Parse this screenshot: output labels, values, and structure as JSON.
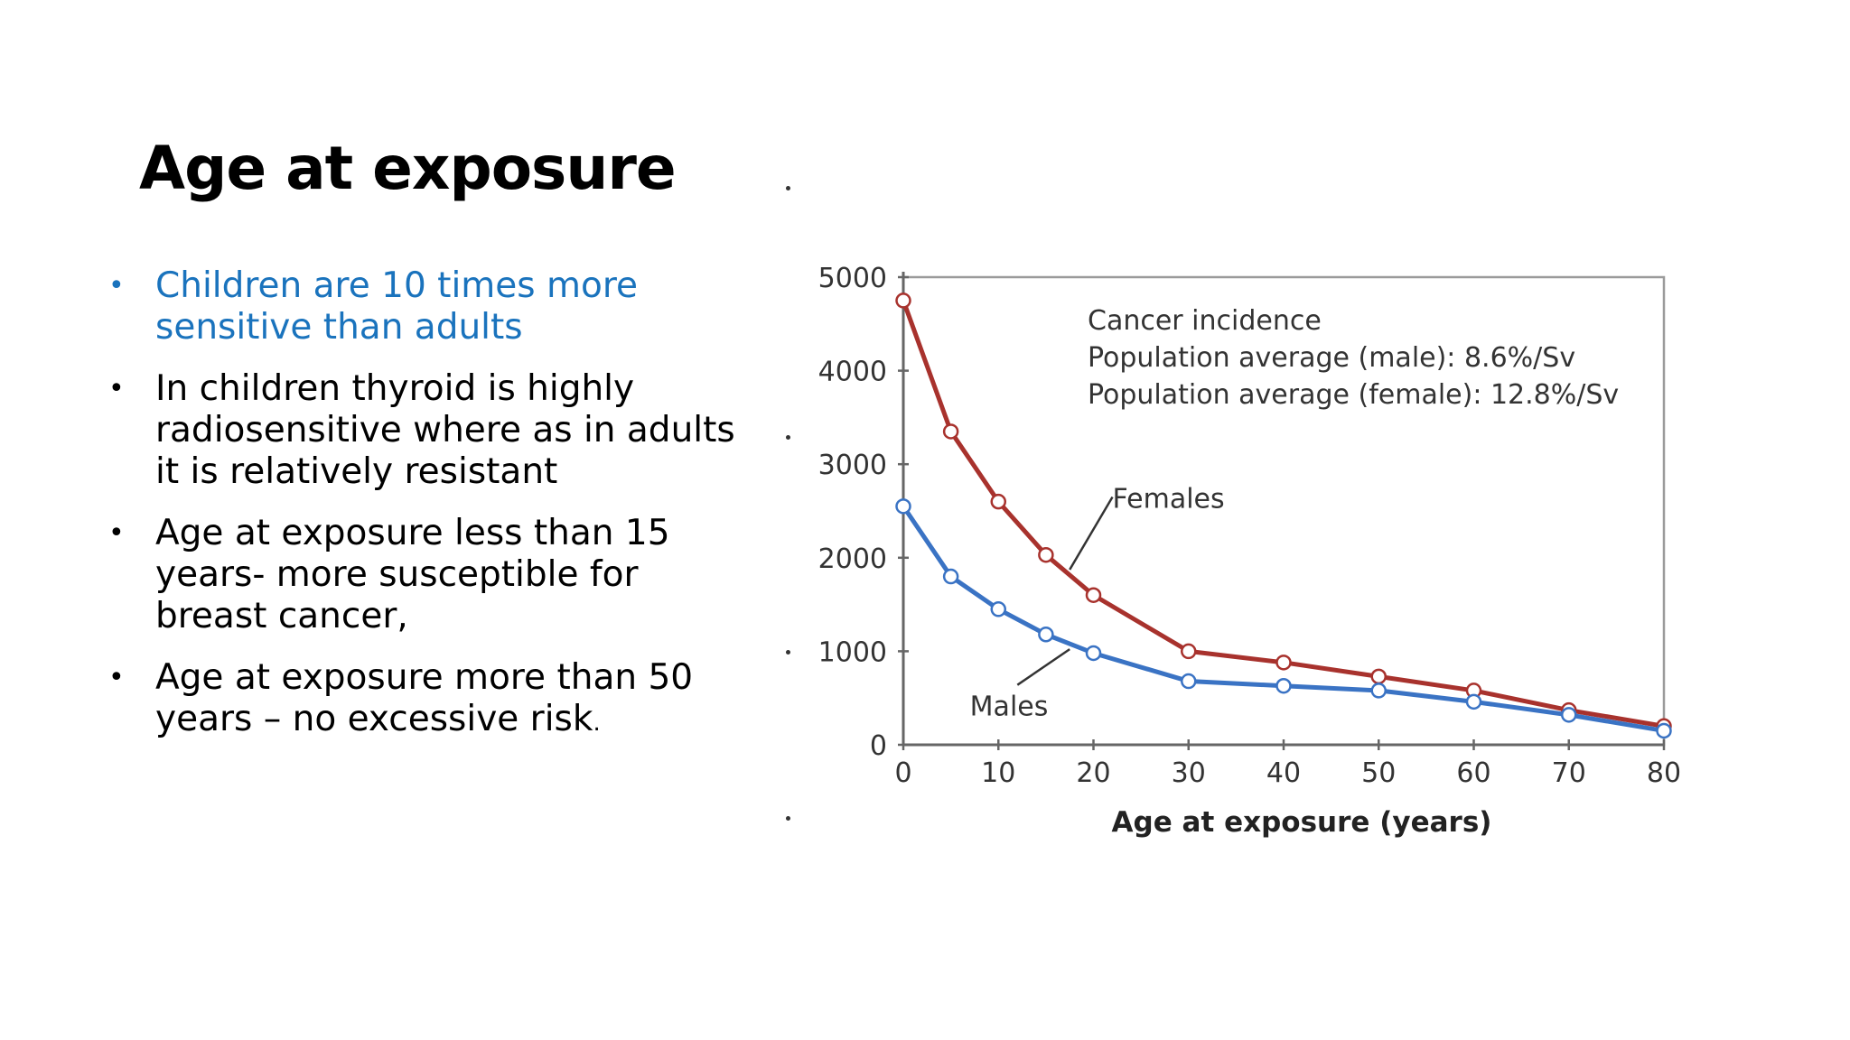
{
  "slide": {
    "title": "Age at exposure",
    "bullets": [
      {
        "text": "Children are 10 times more sensitive than adults",
        "accent": true
      },
      {
        "text": "In children thyroid is highly radiosensitive where as in adults it is relatively resistant",
        "accent": false
      },
      {
        "text": "Age at exposure less than 15 years- more susceptible for breast cancer,",
        "accent": false
      },
      {
        "text": "Age at exposure more than 50 years – no excessive risk",
        "trailing": ".",
        "accent": false
      }
    ],
    "colors": {
      "accent": "#1a73bd",
      "text": "#000000"
    }
  },
  "chart_data": {
    "type": "line",
    "xlabel": "Age at exposure (years)",
    "ylabel": "",
    "xlim": [
      0,
      80
    ],
    "ylim": [
      0,
      5000
    ],
    "xticks": [
      0,
      10,
      20,
      30,
      40,
      50,
      60,
      70,
      80
    ],
    "yticks": [
      0,
      1000,
      2000,
      3000,
      4000,
      5000
    ],
    "annotations": [
      "Cancer incidence",
      "Population average (male): 8.6%/Sv",
      "Population average (female): 12.8%/Sv"
    ],
    "series": [
      {
        "name": "Females",
        "color": "#a8322d",
        "x": [
          0,
          5,
          10,
          15,
          20,
          30,
          40,
          50,
          60,
          70,
          80
        ],
        "y": [
          4750,
          3350,
          2600,
          2030,
          1600,
          1000,
          880,
          730,
          580,
          370,
          200
        ]
      },
      {
        "name": "Males",
        "color": "#3a73c4",
        "x": [
          0,
          5,
          10,
          15,
          20,
          30,
          40,
          50,
          60,
          70,
          80
        ],
        "y": [
          2550,
          1800,
          1450,
          1180,
          980,
          680,
          630,
          580,
          460,
          320,
          150
        ]
      }
    ]
  }
}
